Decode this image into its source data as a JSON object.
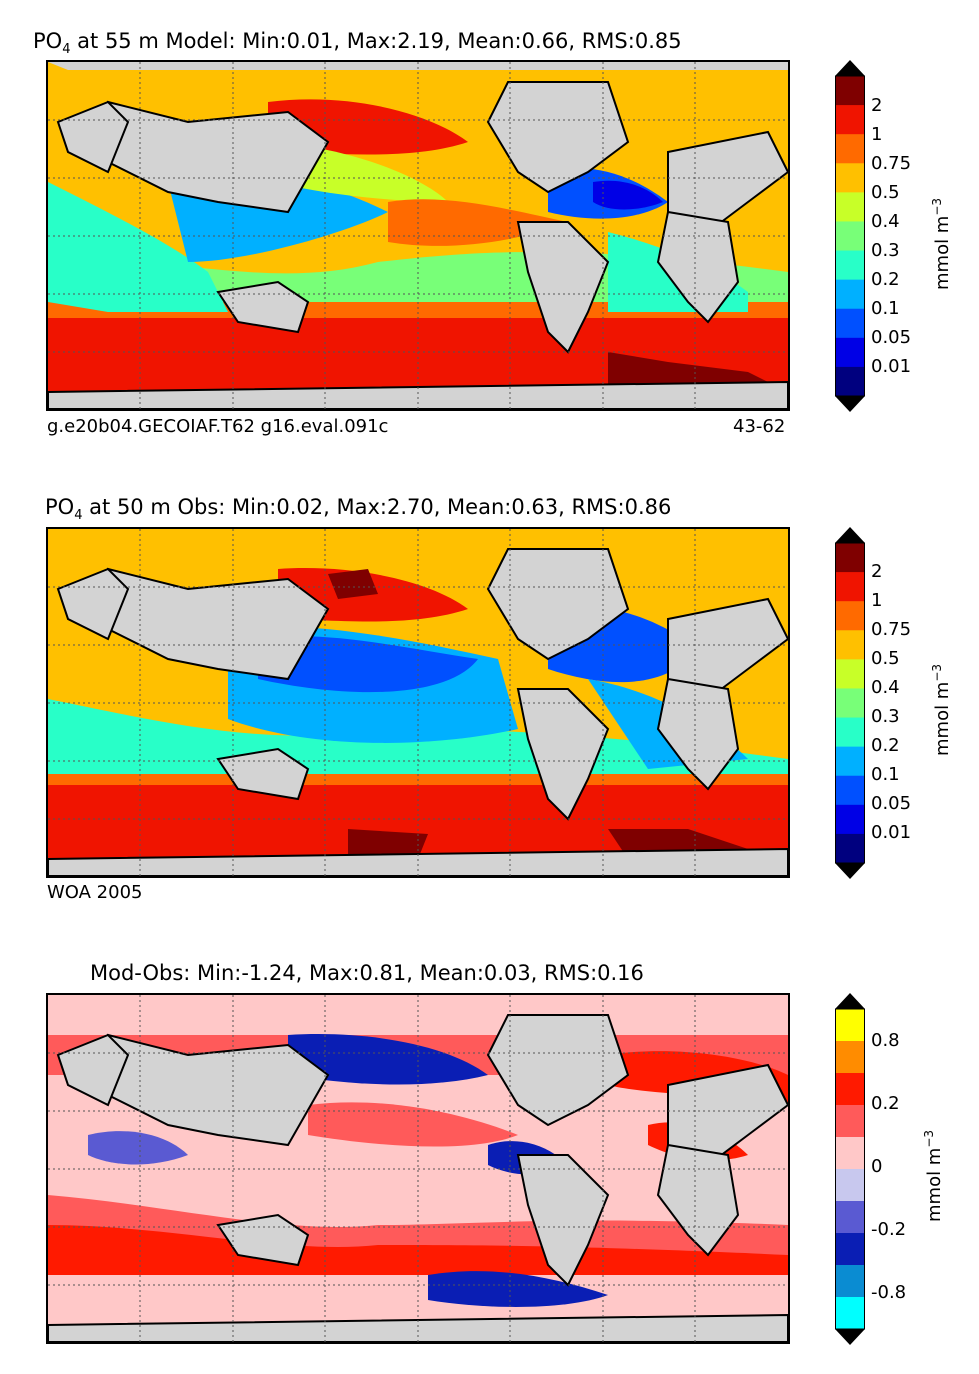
{
  "chart_data": [
    {
      "type": "heatmap",
      "title_var": "PO",
      "title_sub": "4",
      "title_rest": " at 55 m Model: Min:0.01, Max:2.19, Mean:0.66, RMS:0.85",
      "footer_left": "g.e20b04.GECOIAF.T62 g16.eval.091c",
      "footer_right": "43-62",
      "colorbar_levels": [
        "2",
        "1",
        "0.75",
        "0.5",
        "0.4",
        "0.3",
        "0.2",
        "0.1",
        "0.05",
        "0.01"
      ],
      "colorbar_colors": [
        "#7f0000",
        "#f01400",
        "#ff6a00",
        "#ffc000",
        "#c8ff28",
        "#78ff78",
        "#28ffc8",
        "#00b0ff",
        "#0050ff",
        "#0000e6",
        "#00007f"
      ],
      "units": "mmol m",
      "units_sup": "−3",
      "stats": {
        "min": 0.01,
        "max": 2.19,
        "mean": 0.66,
        "rms": 0.85,
        "depth_m": 55
      }
    },
    {
      "type": "heatmap",
      "title_var": "PO",
      "title_sub": "4",
      "title_rest": " at 50 m Obs: Min:0.02, Max:2.70, Mean:0.63, RMS:0.86",
      "footer_left": "WOA 2005",
      "colorbar_levels": [
        "2",
        "1",
        "0.75",
        "0.5",
        "0.4",
        "0.3",
        "0.2",
        "0.1",
        "0.05",
        "0.01"
      ],
      "colorbar_colors": [
        "#7f0000",
        "#f01400",
        "#ff6a00",
        "#ffc000",
        "#c8ff28",
        "#78ff78",
        "#28ffc8",
        "#00b0ff",
        "#0050ff",
        "#0000e6",
        "#00007f"
      ],
      "units": "mmol m",
      "units_sup": "−3",
      "stats": {
        "min": 0.02,
        "max": 2.7,
        "mean": 0.63,
        "rms": 0.86,
        "depth_m": 50
      }
    },
    {
      "type": "heatmap",
      "title_text": "Mod-Obs: Min:-1.24, Max:0.81, Mean:0.03, RMS:0.16",
      "colorbar_levels": [
        "0.8",
        "0.2",
        "0",
        "-0.2",
        "-0.8"
      ],
      "colorbar_colors": [
        "#ffff00",
        "#ff8c00",
        "#ff1a00",
        "#ff5a5a",
        "#ffc8c8",
        "#c8c8ee",
        "#5a5ad2",
        "#0a1eb4",
        "#0a8cd2",
        "#00ffff"
      ],
      "units": "mmol m",
      "units_sup": "−3",
      "stats": {
        "min": -1.24,
        "max": 0.81,
        "mean": 0.03,
        "rms": 0.16
      }
    }
  ]
}
